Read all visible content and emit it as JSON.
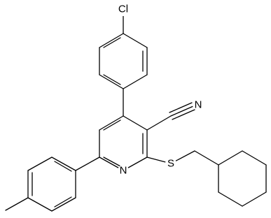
{
  "atoms": [
    {
      "label": "Cl"
    },
    {
      "label": "N"
    },
    {
      "label": "N"
    },
    {
      "label": "S"
    }
  ]
}
